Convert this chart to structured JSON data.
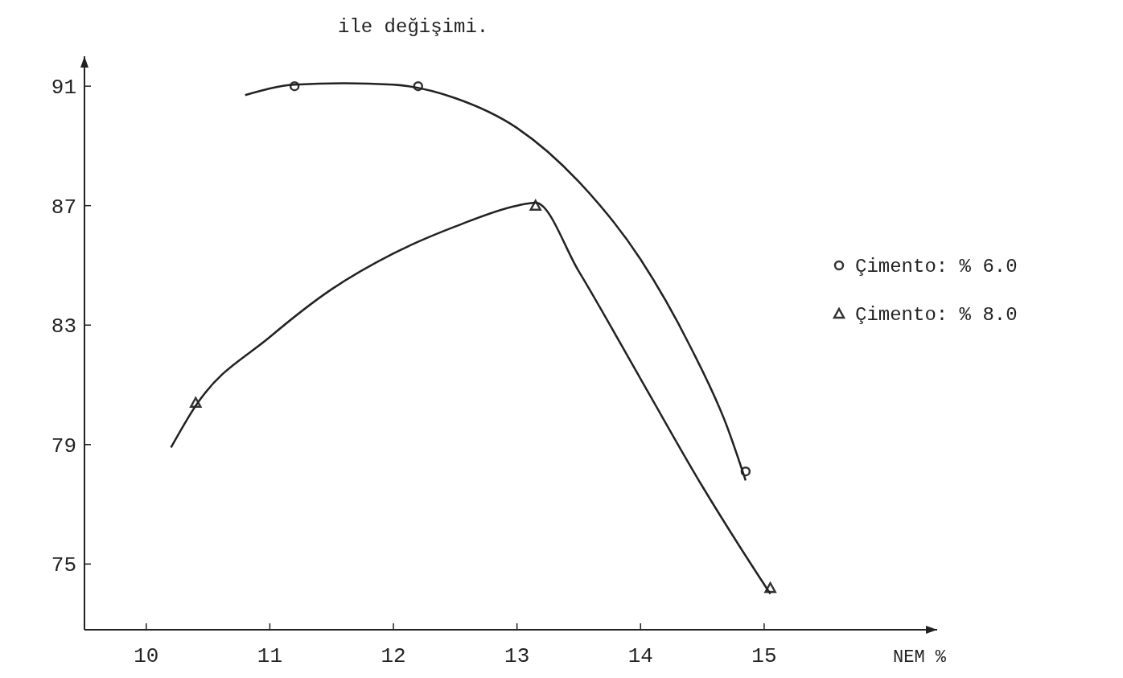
{
  "chart_data": {
    "type": "scatter",
    "title": "ile değişimi.",
    "xlabel": "NEM %",
    "xlim": [
      9.5,
      16.4
    ],
    "ylim": [
      72.8,
      92
    ],
    "xticks": [
      10,
      11,
      12,
      13,
      14,
      15
    ],
    "yticks": [
      75,
      79,
      83,
      87,
      91
    ],
    "legend": "right",
    "grid": false,
    "series": [
      {
        "name": "Çimento: % 6.0",
        "marker": "circle",
        "color": "#333333",
        "x": [
          11.2,
          12.2,
          14.85
        ],
        "values": [
          91.0,
          91.0,
          78.1
        ]
      },
      {
        "name": "Çimento: % 8.0",
        "marker": "triangle",
        "color": "#333333",
        "x": [
          10.4,
          13.15,
          15.05
        ],
        "values": [
          80.4,
          87.0,
          74.2
        ]
      },
      {
        "type": "line",
        "color": "#222222",
        "x": [
          10.8,
          11.2,
          11.6,
          12,
          12.5,
          13,
          13.5,
          14,
          14.4,
          14.7,
          14.85
        ],
        "values": [
          90.7,
          91.05,
          91.1,
          91.05,
          90.6,
          89.6,
          87.8,
          85.2,
          82.3,
          79.6,
          77.8
        ]
      },
      {
        "type": "line",
        "color": "#222222",
        "x": [
          10.2,
          10.4,
          11,
          11.5,
          12,
          12.5,
          13,
          13.15,
          13.5,
          14,
          14.5,
          14.8,
          15.05
        ],
        "values": [
          78.9,
          80.3,
          82.6,
          84.2,
          85.4,
          86.3,
          87.0,
          87.1,
          84.8,
          81.2,
          77.6,
          75.6,
          74.0
        ]
      }
    ]
  }
}
